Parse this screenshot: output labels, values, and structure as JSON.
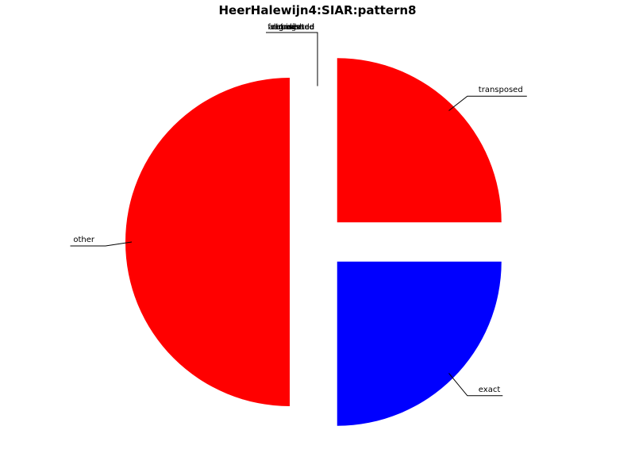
{
  "chart_data": {
    "type": "pie",
    "title": "HeerHalewijn4:SIAR:pattern8",
    "slices": [
      {
        "label": "other",
        "value": 50,
        "color": "#ff0000"
      },
      {
        "label": "exact",
        "value": 25,
        "color": "#0000ff"
      },
      {
        "label": "transposed",
        "value": 25,
        "color": "#ff0000"
      },
      {
        "label": "truncated",
        "value": 0,
        "color": "#ff0000"
      },
      {
        "label": "inverted",
        "value": 0,
        "color": "#ff0000"
      },
      {
        "label": "diminished",
        "value": 0,
        "color": "#ff0000"
      },
      {
        "label": "augmented",
        "value": 0,
        "color": "#ff0000"
      },
      {
        "label": "fragmented",
        "value": 0,
        "color": "#ff0000"
      },
      {
        "label": "retrograde",
        "value": 0,
        "color": "#ff0000"
      },
      {
        "label": "dilated",
        "value": 0,
        "color": "#ff0000"
      }
    ],
    "exploded": true,
    "legend": "none"
  }
}
